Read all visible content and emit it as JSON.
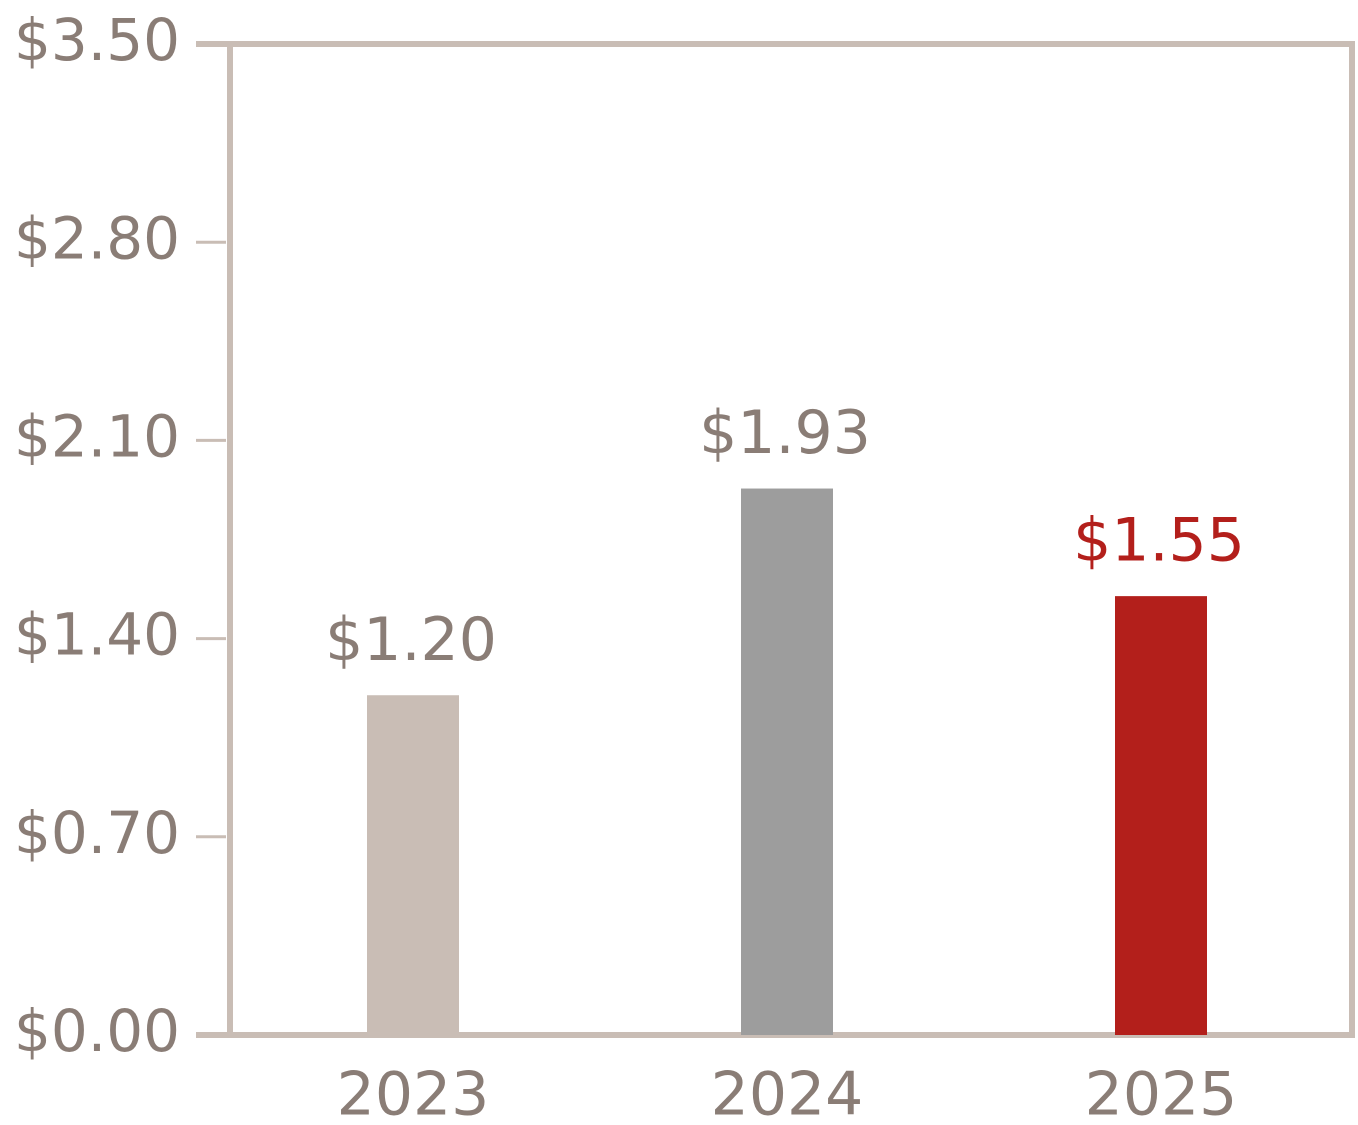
{
  "chart_data": {
    "type": "bar",
    "categories": [
      "2023",
      "2024",
      "2025"
    ],
    "values": [
      1.2,
      1.93,
      1.55
    ],
    "value_labels": [
      "$1.20",
      "$1.93",
      "$1.55"
    ],
    "colors": [
      "#c9bdb5",
      "#9d9d9d",
      "#b31f1b"
    ],
    "value_label_colors": [
      "#8a7d76",
      "#8a7d76",
      "#b31f1b"
    ],
    "ylim": [
      0,
      3.5
    ],
    "yticks": [
      {
        "value": 0,
        "label": "$0.00"
      },
      {
        "value": 0.7,
        "label": "$0.70"
      },
      {
        "value": 1.4,
        "label": "$1.40"
      },
      {
        "value": 2.1,
        "label": "$2.10"
      },
      {
        "value": 2.8,
        "label": "$2.80"
      },
      {
        "value": 3.5,
        "label": "$3.50"
      }
    ],
    "grid": false
  }
}
